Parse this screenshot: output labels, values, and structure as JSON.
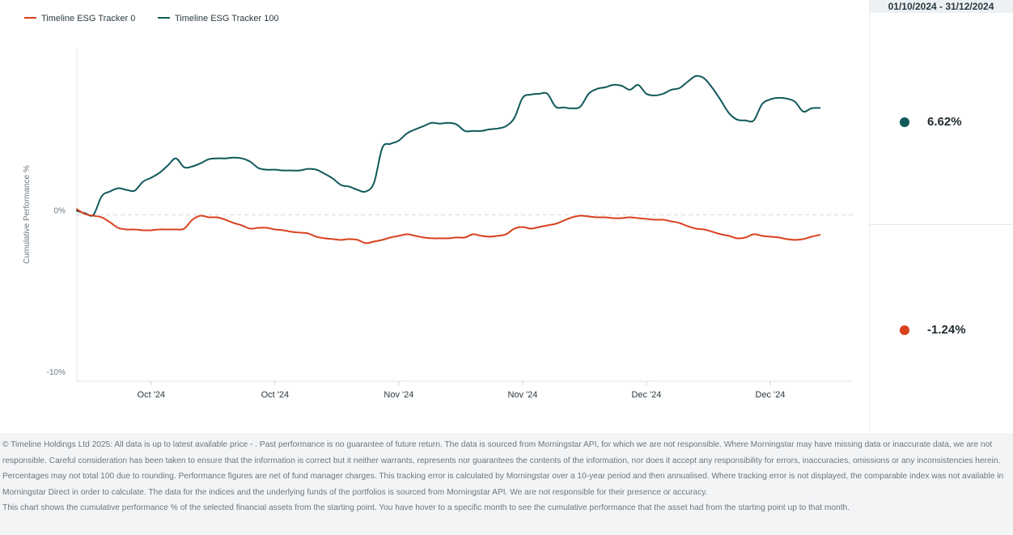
{
  "header": {
    "date_range": "01/10/2024 - 31/12/2024"
  },
  "legend": [
    {
      "label": "Timeline ESG Tracker 0",
      "color": "#d9411e"
    },
    {
      "label": "Timeline ESG Tracker 100",
      "color": "#10585a"
    }
  ],
  "stats": [
    {
      "value": "6.62%",
      "color": "#10585a"
    },
    {
      "value": "-1.24%",
      "color": "#d9411e"
    }
  ],
  "chart_data": {
    "type": "line",
    "ylabel": "Cumulative Performance %",
    "y_ticks": [
      {
        "label": "0%",
        "value": 0
      },
      {
        "label": "-10%",
        "value": -10
      }
    ],
    "ylim": [
      -10.3,
      10.3
    ],
    "x_ticks": [
      {
        "label": "Oct '24",
        "day": 9
      },
      {
        "label": "Oct '24",
        "day": 24
      },
      {
        "label": "Nov '24",
        "day": 39
      },
      {
        "label": "Nov '24",
        "day": 54
      },
      {
        "label": "Dec '24",
        "day": 69
      },
      {
        "label": "Dec '24",
        "day": 84
      }
    ],
    "xlim": [
      0,
      94
    ],
    "zero_line": true,
    "series": [
      {
        "name": "Timeline ESG Tracker 100",
        "color": "#10585a",
        "points": [
          [
            0,
            0.25
          ],
          [
            1,
            0.1
          ],
          [
            2,
            0.0
          ],
          [
            3,
            1.15
          ],
          [
            4,
            1.45
          ],
          [
            5,
            1.65
          ],
          [
            6,
            1.55
          ],
          [
            7,
            1.5
          ],
          [
            8,
            2.05
          ],
          [
            9,
            2.3
          ],
          [
            10,
            2.6
          ],
          [
            11,
            3.05
          ],
          [
            12,
            3.5
          ],
          [
            13,
            2.95
          ],
          [
            14,
            3.0
          ],
          [
            15,
            3.2
          ],
          [
            16,
            3.45
          ],
          [
            17,
            3.5
          ],
          [
            18,
            3.5
          ],
          [
            19,
            3.55
          ],
          [
            20,
            3.5
          ],
          [
            21,
            3.3
          ],
          [
            22,
            2.9
          ],
          [
            23,
            2.8
          ],
          [
            24,
            2.8
          ],
          [
            25,
            2.75
          ],
          [
            26,
            2.75
          ],
          [
            27,
            2.75
          ],
          [
            28,
            2.85
          ],
          [
            29,
            2.8
          ],
          [
            30,
            2.55
          ],
          [
            31,
            2.25
          ],
          [
            32,
            1.85
          ],
          [
            33,
            1.75
          ],
          [
            34,
            1.55
          ],
          [
            35,
            1.45
          ],
          [
            36,
            2.0
          ],
          [
            37,
            4.15
          ],
          [
            38,
            4.4
          ],
          [
            39,
            4.6
          ],
          [
            40,
            5.05
          ],
          [
            41,
            5.3
          ],
          [
            42,
            5.5
          ],
          [
            43,
            5.7
          ],
          [
            44,
            5.65
          ],
          [
            45,
            5.7
          ],
          [
            46,
            5.6
          ],
          [
            47,
            5.2
          ],
          [
            48,
            5.2
          ],
          [
            49,
            5.2
          ],
          [
            50,
            5.3
          ],
          [
            51,
            5.35
          ],
          [
            52,
            5.5
          ],
          [
            53,
            6.0
          ],
          [
            54,
            7.25
          ],
          [
            55,
            7.45
          ],
          [
            56,
            7.5
          ],
          [
            57,
            7.5
          ],
          [
            58,
            6.7
          ],
          [
            59,
            6.65
          ],
          [
            60,
            6.6
          ],
          [
            61,
            6.7
          ],
          [
            62,
            7.5
          ],
          [
            63,
            7.8
          ],
          [
            64,
            7.9
          ],
          [
            65,
            8.05
          ],
          [
            66,
            8.0
          ],
          [
            67,
            7.75
          ],
          [
            68,
            8.05
          ],
          [
            69,
            7.5
          ],
          [
            70,
            7.4
          ],
          [
            71,
            7.5
          ],
          [
            72,
            7.75
          ],
          [
            73,
            7.85
          ],
          [
            74,
            8.25
          ],
          [
            75,
            8.6
          ],
          [
            76,
            8.45
          ],
          [
            77,
            7.85
          ],
          [
            78,
            7.1
          ],
          [
            79,
            6.3
          ],
          [
            80,
            5.9
          ],
          [
            81,
            5.85
          ],
          [
            82,
            5.85
          ],
          [
            83,
            6.85
          ],
          [
            84,
            7.15
          ],
          [
            85,
            7.25
          ],
          [
            86,
            7.2
          ],
          [
            87,
            7.0
          ],
          [
            88,
            6.4
          ],
          [
            89,
            6.6
          ],
          [
            90,
            6.62
          ]
        ]
      },
      {
        "name": "Timeline ESG Tracker 0",
        "color": "#d9411e",
        "points": [
          [
            0,
            0.35
          ],
          [
            1,
            0.05
          ],
          [
            2,
            -0.05
          ],
          [
            3,
            -0.15
          ],
          [
            4,
            -0.45
          ],
          [
            5,
            -0.8
          ],
          [
            6,
            -0.9
          ],
          [
            7,
            -0.9
          ],
          [
            8,
            -0.95
          ],
          [
            9,
            -0.95
          ],
          [
            10,
            -0.9
          ],
          [
            11,
            -0.9
          ],
          [
            12,
            -0.9
          ],
          [
            13,
            -0.85
          ],
          [
            14,
            -0.3
          ],
          [
            15,
            -0.05
          ],
          [
            16,
            -0.15
          ],
          [
            17,
            -0.15
          ],
          [
            18,
            -0.3
          ],
          [
            19,
            -0.5
          ],
          [
            20,
            -0.65
          ],
          [
            21,
            -0.85
          ],
          [
            22,
            -0.8
          ],
          [
            23,
            -0.8
          ],
          [
            24,
            -0.9
          ],
          [
            25,
            -0.95
          ],
          [
            26,
            -1.05
          ],
          [
            27,
            -1.1
          ],
          [
            28,
            -1.15
          ],
          [
            29,
            -1.35
          ],
          [
            30,
            -1.45
          ],
          [
            31,
            -1.5
          ],
          [
            32,
            -1.55
          ],
          [
            33,
            -1.5
          ],
          [
            34,
            -1.55
          ],
          [
            35,
            -1.75
          ],
          [
            36,
            -1.65
          ],
          [
            37,
            -1.55
          ],
          [
            38,
            -1.4
          ],
          [
            39,
            -1.3
          ],
          [
            40,
            -1.2
          ],
          [
            41,
            -1.3
          ],
          [
            42,
            -1.4
          ],
          [
            43,
            -1.45
          ],
          [
            44,
            -1.45
          ],
          [
            45,
            -1.45
          ],
          [
            46,
            -1.4
          ],
          [
            47,
            -1.4
          ],
          [
            48,
            -1.2
          ],
          [
            49,
            -1.3
          ],
          [
            50,
            -1.35
          ],
          [
            51,
            -1.3
          ],
          [
            52,
            -1.2
          ],
          [
            53,
            -0.85
          ],
          [
            54,
            -0.75
          ],
          [
            55,
            -0.85
          ],
          [
            56,
            -0.75
          ],
          [
            57,
            -0.65
          ],
          [
            58,
            -0.55
          ],
          [
            59,
            -0.35
          ],
          [
            60,
            -0.15
          ],
          [
            61,
            -0.05
          ],
          [
            62,
            -0.1
          ],
          [
            63,
            -0.15
          ],
          [
            64,
            -0.15
          ],
          [
            65,
            -0.2
          ],
          [
            66,
            -0.2
          ],
          [
            67,
            -0.15
          ],
          [
            68,
            -0.2
          ],
          [
            69,
            -0.25
          ],
          [
            70,
            -0.3
          ],
          [
            71,
            -0.3
          ],
          [
            72,
            -0.4
          ],
          [
            73,
            -0.5
          ],
          [
            74,
            -0.7
          ],
          [
            75,
            -0.85
          ],
          [
            76,
            -0.9
          ],
          [
            77,
            -1.05
          ],
          [
            78,
            -1.2
          ],
          [
            79,
            -1.3
          ],
          [
            80,
            -1.45
          ],
          [
            81,
            -1.4
          ],
          [
            82,
            -1.2
          ],
          [
            83,
            -1.3
          ],
          [
            84,
            -1.35
          ],
          [
            85,
            -1.4
          ],
          [
            86,
            -1.5
          ],
          [
            87,
            -1.55
          ],
          [
            88,
            -1.5
          ],
          [
            89,
            -1.35
          ],
          [
            90,
            -1.24
          ]
        ]
      }
    ]
  },
  "footer": {
    "disclaimer": "© Timeline Holdings Ltd 2025: All data is up to latest available price - . Past performance is no guarantee of future return. The data is sourced from Morningstar API, for which we are not responsible. Where Morningstar may have missing data or inaccurate data, we are not responsible. Careful consideration has been taken to ensure that the information is correct but it neither warrants, represents nor guarantees the contents of the information, nor does it accept any responsibility for errors, inaccuracies, omissions or any inconsistencies herein. Percentages may not total 100 due to rounding. Performance figures are net of fund manager charges. This tracking error is calculated by Morningstar over a 10-year period and then annualised. Where tracking error is not displayed, the comparable index was not available in Morningstar Direct in order to calculate. The data for the indices and the underlying funds of the portfolios is sourced from Morningstar API. We are not responsible for their presence or accuracy.",
    "description": "This chart shows the cumulative performance % of the selected financial assets from the starting point. You have hover to a specific month to see the cumulative performance that the asset had from the starting point up to that month."
  }
}
